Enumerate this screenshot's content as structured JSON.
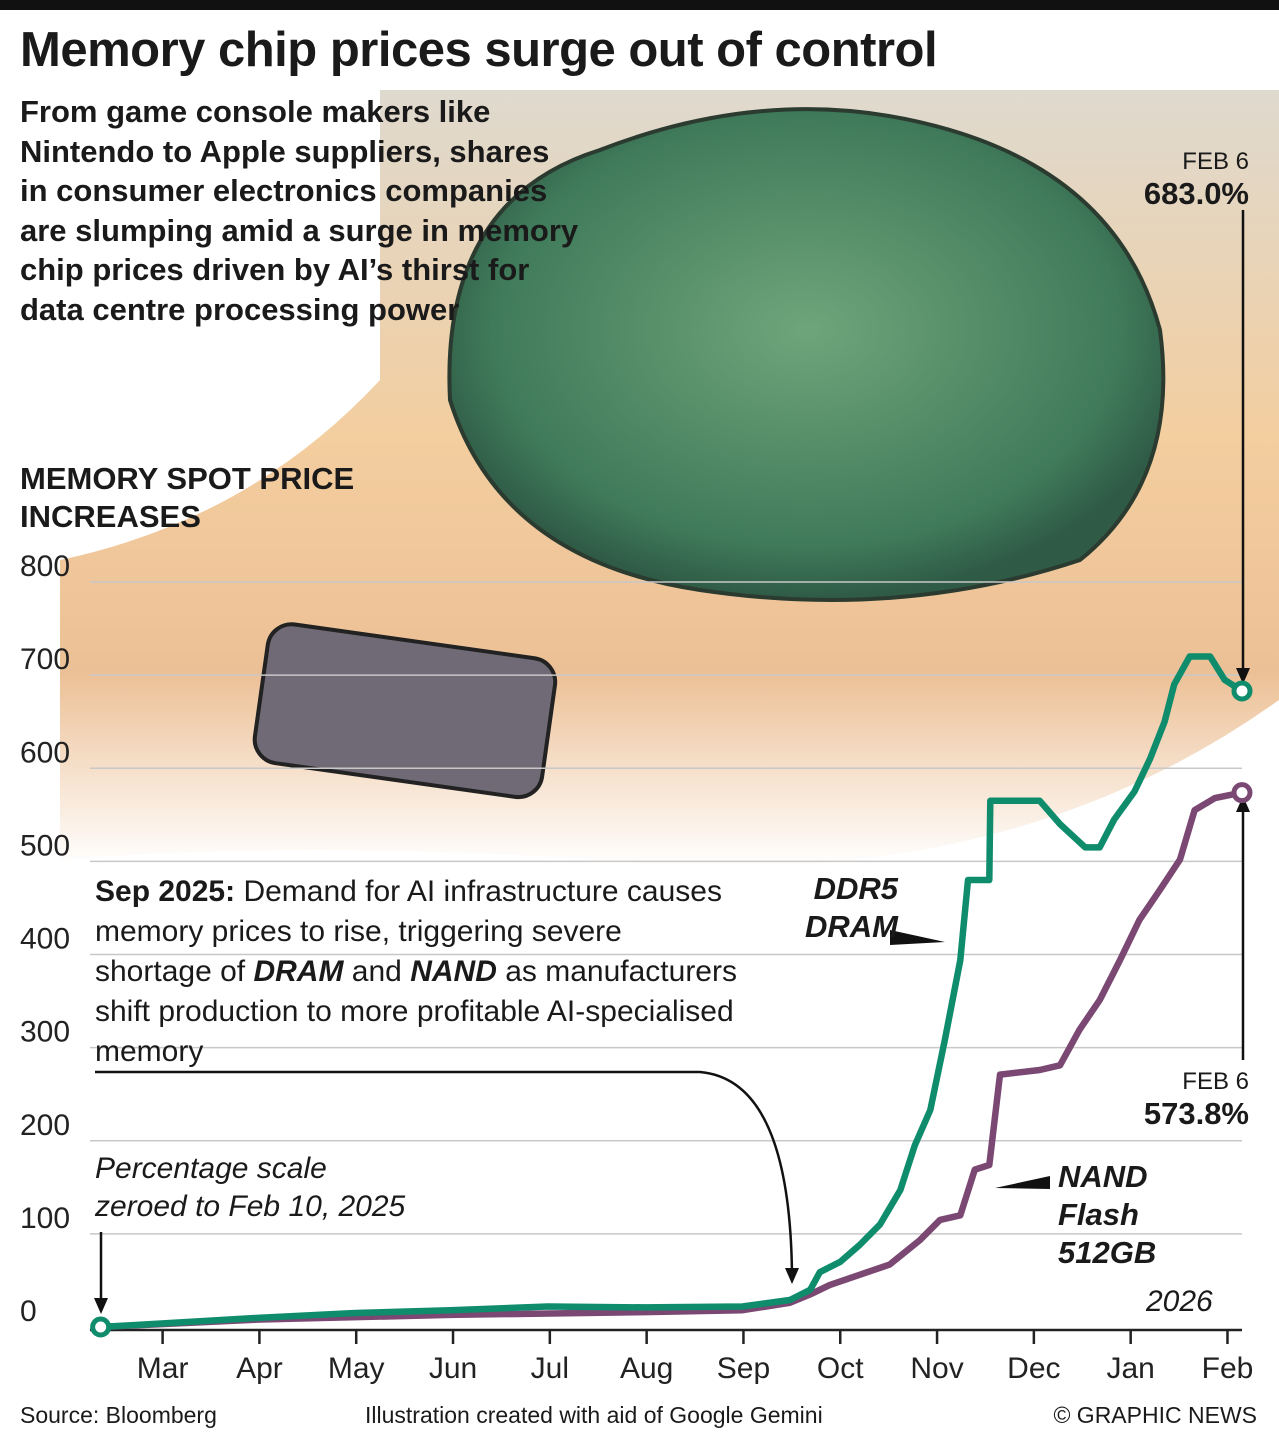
{
  "title": "Memory chip prices surge out of control",
  "subtitle": "From game console makers like Nintendo to Apple suppliers, shares in consumer electronics companies are slumping amid a surge in memory chip prices driven by AI’s thirst for data centre processing power",
  "footer": {
    "source": "Source: Bloomberg",
    "illustration": "Illustration created with aid of Google Gemini",
    "credit": "© GRAPHIC NEWS"
  },
  "chart_data": {
    "type": "line",
    "title": "MEMORY SPOT PRICE INCREASES",
    "note": "Percentage scale zeroed to Feb 10, 2025",
    "year_label": "2026",
    "annotation": {
      "lead": "Sep 2025:",
      "text1": "Demand for AI infrastructure causes memory prices to rise, triggering severe shortage of",
      "em1": "DRAM",
      "text2": "and",
      "em2": "NAND",
      "text3": "as manufacturers shift production to more profitable AI-specialised memory"
    },
    "xlim": [
      1.25,
      13.15
    ],
    "xticks": [
      {
        "value": 2,
        "label": "Mar"
      },
      {
        "value": 3,
        "label": "Apr"
      },
      {
        "value": 4,
        "label": "May"
      },
      {
        "value": 5,
        "label": "Jun"
      },
      {
        "value": 6,
        "label": "Jul"
      },
      {
        "value": 7,
        "label": "Aug"
      },
      {
        "value": 8,
        "label": "Sep"
      },
      {
        "value": 9,
        "label": "Oct"
      },
      {
        "value": 10,
        "label": "Nov"
      },
      {
        "value": 11,
        "label": "Dec"
      },
      {
        "value": 12,
        "label": "Jan"
      },
      {
        "value": 13,
        "label": "Feb"
      }
    ],
    "ylim": [
      0,
      800
    ],
    "yticks": [
      0,
      100,
      200,
      300,
      400,
      500,
      600,
      700,
      800
    ],
    "grid": true,
    "series": [
      {
        "name": "DDR5 DRAM",
        "color": "#0e8c6c",
        "end_date": "FEB 6",
        "end_label": "683.0%",
        "x": [
          1.36,
          3.01,
          3.99,
          4.97,
          5.98,
          6.98,
          7.99,
          8.48,
          8.69,
          8.79,
          9.0,
          9.2,
          9.41,
          9.62,
          9.77,
          9.93,
          10.08,
          10.24,
          10.32,
          10.54,
          10.55,
          11.06,
          11.27,
          11.53,
          11.68,
          11.83,
          12.04,
          12.2,
          12.35,
          12.45,
          12.61,
          12.82,
          12.97,
          13.15
        ],
        "values": [
          0,
          10,
          15,
          18,
          22,
          21,
          22,
          29,
          40,
          59,
          70,
          88,
          110,
          147,
          195,
          233,
          308,
          394,
          480,
          480,
          565,
          565,
          540,
          515,
          515,
          545,
          575,
          610,
          650,
          690,
          720,
          720,
          695,
          683.0
        ]
      },
      {
        "name": "NAND Flash 512GB",
        "color": "#7a4872",
        "end_date": "FEB 6",
        "end_label": "573.8%",
        "x": [
          1.36,
          3.01,
          4.97,
          6.98,
          7.99,
          8.48,
          8.69,
          8.89,
          9.2,
          9.51,
          9.82,
          10.03,
          10.24,
          10.39,
          10.54,
          10.65,
          11.06,
          11.27,
          11.47,
          11.68,
          11.89,
          12.09,
          12.3,
          12.51,
          12.66,
          12.87,
          13.15
        ],
        "values": [
          0,
          8,
          13,
          16,
          18,
          26,
          35,
          45,
          56,
          67,
          93,
          115,
          120,
          169,
          174,
          271,
          276,
          281,
          319,
          351,
          394,
          437,
          469,
          502,
          555,
          568,
          573.8
        ]
      }
    ]
  }
}
